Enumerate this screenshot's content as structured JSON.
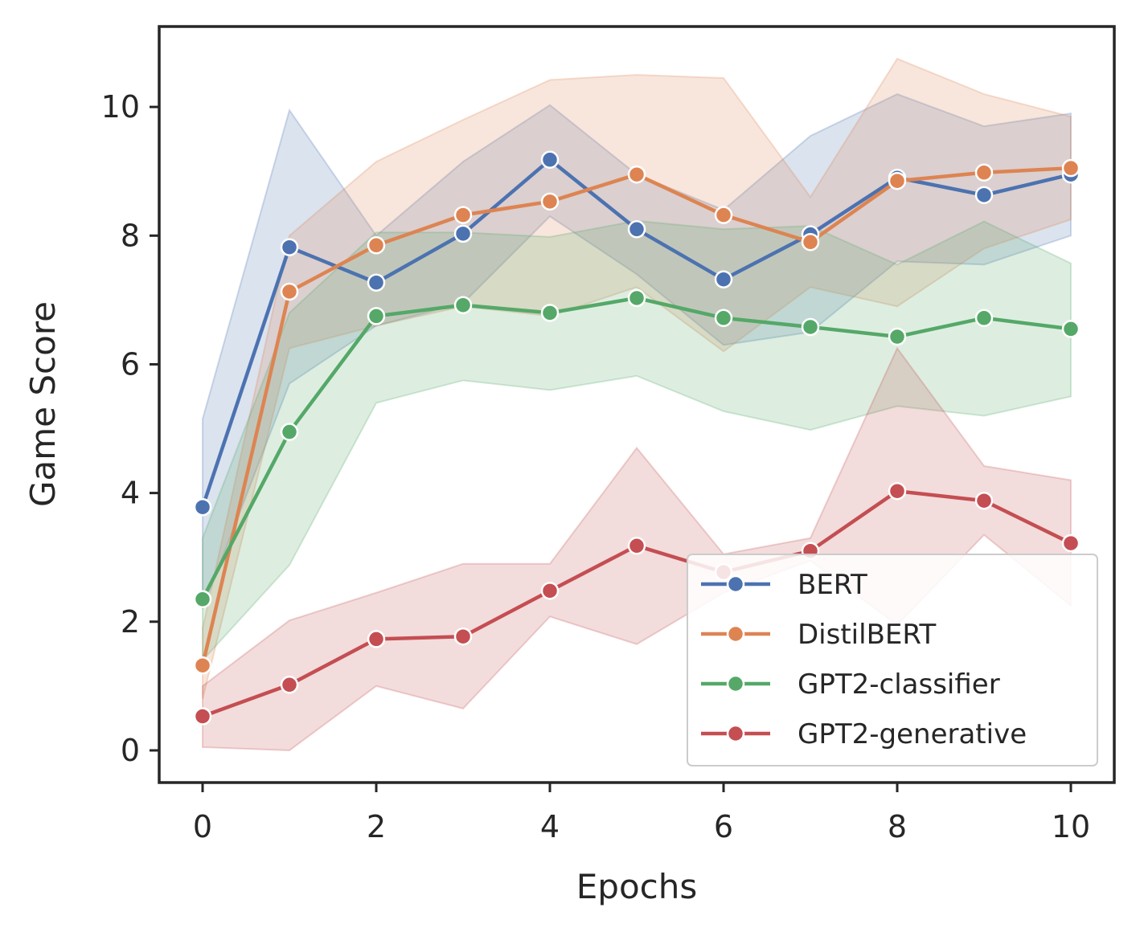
{
  "chart_data": {
    "type": "line",
    "title": "",
    "xlabel": "Epochs",
    "ylabel": "Game Score",
    "xlim": [
      -0.5,
      10.5
    ],
    "ylim": [
      -0.5,
      11.25
    ],
    "xticks": [
      0,
      2,
      4,
      6,
      8,
      10
    ],
    "yticks": [
      0,
      2,
      4,
      6,
      8,
      10
    ],
    "legend_position": "lower-right",
    "x": [
      0,
      1,
      2,
      3,
      4,
      5,
      6,
      7,
      8,
      9,
      10
    ],
    "series": [
      {
        "name": "BERT",
        "color": "#4c72b0",
        "values": [
          3.78,
          7.82,
          7.27,
          8.03,
          9.18,
          8.1,
          7.32,
          8.02,
          8.9,
          8.63,
          8.95
        ],
        "lower": [
          2.2,
          5.7,
          6.6,
          6.95,
          8.3,
          7.4,
          6.3,
          6.5,
          7.6,
          7.55,
          8.0
        ],
        "upper": [
          5.15,
          9.95,
          8.0,
          9.15,
          10.03,
          8.95,
          8.4,
          9.55,
          10.2,
          9.7,
          9.9
        ]
      },
      {
        "name": "DistilBERT",
        "color": "#dd8452",
        "values": [
          1.32,
          7.13,
          7.85,
          8.32,
          8.53,
          8.95,
          8.32,
          7.9,
          8.85,
          8.98,
          9.05
        ],
        "lower": [
          0.8,
          6.25,
          6.6,
          6.9,
          6.75,
          7.2,
          6.2,
          7.2,
          6.9,
          7.8,
          8.25
        ],
        "upper": [
          1.9,
          8.0,
          9.15,
          9.8,
          10.42,
          10.5,
          10.45,
          8.6,
          10.75,
          10.2,
          9.85
        ]
      },
      {
        "name": "GPT2-classifier",
        "color": "#55a868",
        "values": [
          2.35,
          4.95,
          6.75,
          6.92,
          6.8,
          7.03,
          6.72,
          6.58,
          6.43,
          6.72,
          6.55
        ],
        "lower": [
          1.4,
          2.88,
          5.4,
          5.75,
          5.6,
          5.82,
          5.27,
          4.98,
          5.35,
          5.2,
          5.5
        ],
        "upper": [
          3.3,
          6.8,
          8.05,
          8.05,
          7.98,
          8.23,
          8.1,
          8.15,
          7.55,
          8.22,
          7.57
        ]
      },
      {
        "name": "GPT2-generative",
        "color": "#c44e52",
        "values": [
          0.53,
          1.02,
          1.73,
          1.77,
          2.48,
          3.18,
          2.77,
          3.1,
          4.03,
          3.88,
          3.22
        ],
        "lower": [
          0.05,
          0.0,
          1.0,
          0.65,
          2.08,
          1.65,
          2.45,
          2.95,
          1.95,
          3.35,
          2.25
        ],
        "upper": [
          1.0,
          2.02,
          2.45,
          2.9,
          2.9,
          4.7,
          3.05,
          3.3,
          6.25,
          4.42,
          4.2
        ]
      }
    ]
  }
}
